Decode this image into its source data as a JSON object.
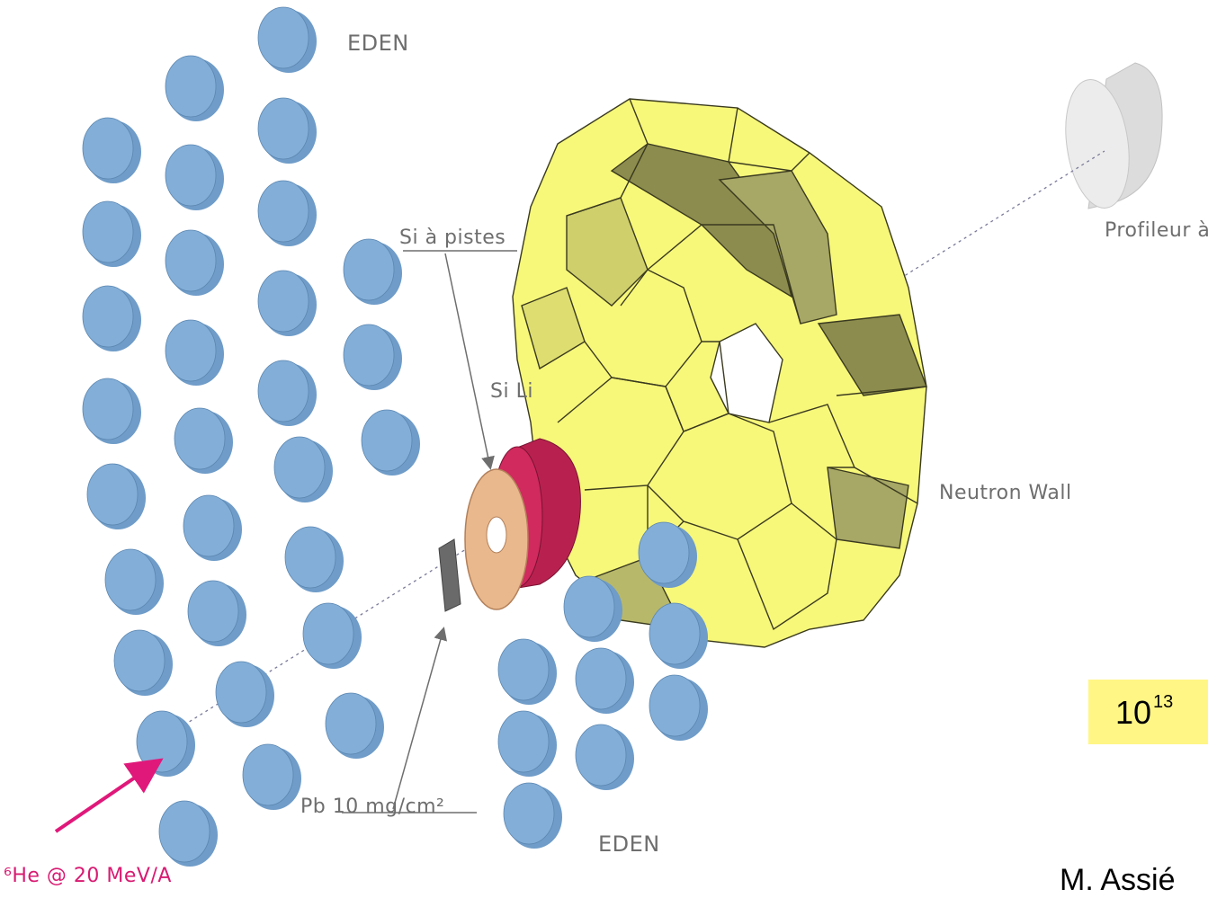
{
  "labels": {
    "eden_top": "EDEN",
    "eden_bottom": "EDEN",
    "profileur": "Profileur à gaz",
    "si_pistes": "Si à pistes",
    "si_li": "Si Li",
    "neutron_wall": "Neutron Wall",
    "pb_target": "Pb 10 mg/cm²",
    "beam": "⁶He @ 20 MeV/A"
  },
  "intensity": {
    "base": "10",
    "exponent": "13"
  },
  "author": "M. Assié",
  "colors": {
    "eden_detector": "#82aed8",
    "neutron_wall": "#f7f77a",
    "neutron_wall_dark": "#8c8c4e",
    "si_ring": "#e9b88d",
    "si_li": "#d02a5e",
    "beam_arrow": "#e0187a",
    "highlight_box": "#fff686"
  }
}
